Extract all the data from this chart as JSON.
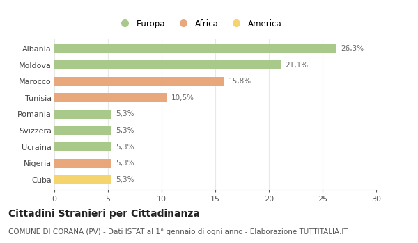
{
  "categories": [
    "Albania",
    "Moldova",
    "Marocco",
    "Tunisia",
    "Romania",
    "Svizzera",
    "Ucraina",
    "Nigeria",
    "Cuba"
  ],
  "values": [
    26.3,
    21.1,
    15.8,
    10.5,
    5.3,
    5.3,
    5.3,
    5.3,
    5.3
  ],
  "labels": [
    "26,3%",
    "21,1%",
    "15,8%",
    "10,5%",
    "5,3%",
    "5,3%",
    "5,3%",
    "5,3%",
    "5,3%"
  ],
  "colors": [
    "#a8c98a",
    "#a8c98a",
    "#e8a87c",
    "#e8a87c",
    "#a8c98a",
    "#a8c98a",
    "#a8c98a",
    "#e8a87c",
    "#f5d46e"
  ],
  "legend_labels": [
    "Europa",
    "Africa",
    "America"
  ],
  "legend_colors": [
    "#a8c98a",
    "#e8a87c",
    "#f5d46e"
  ],
  "title": "Cittadini Stranieri per Cittadinanza",
  "subtitle": "COMUNE DI CORANA (PV) - Dati ISTAT al 1° gennaio di ogni anno - Elaborazione TUTTITALIA.IT",
  "xlim": [
    0,
    30
  ],
  "xticks": [
    0,
    5,
    10,
    15,
    20,
    25,
    30
  ],
  "bg_color": "#ffffff",
  "grid_color": "#e8e8e8",
  "title_fontsize": 10,
  "subtitle_fontsize": 7.5,
  "label_fontsize": 7.5,
  "ytick_fontsize": 8,
  "xtick_fontsize": 8,
  "bar_height": 0.55
}
